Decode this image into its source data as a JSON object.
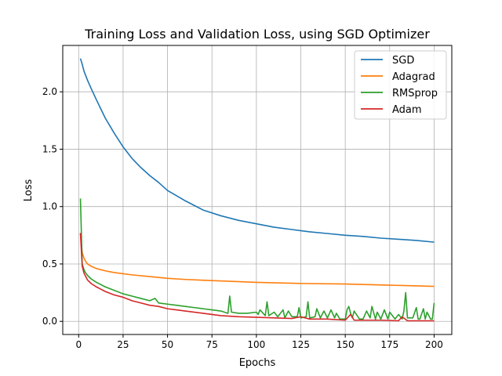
{
  "chart_data": {
    "type": "line",
    "title": "Training Loss and Validation Loss, using SGD Optimizer",
    "xlabel": "Epochs",
    "ylabel": "Loss",
    "xlim": [
      -8.95,
      209.95
    ],
    "ylim": [
      -0.1145,
      2.404
    ],
    "xticks": [
      0,
      25,
      50,
      75,
      100,
      125,
      150,
      175,
      200
    ],
    "yticks": [
      0.0,
      0.5,
      1.0,
      1.5,
      2.0
    ],
    "ytick_labels": [
      "0.0",
      "0.5",
      "1.0",
      "1.5",
      "2.0"
    ],
    "grid": true,
    "legend_position": "top-right",
    "series": [
      {
        "name": "SGD",
        "color": "#1f77b4",
        "x": [
          1,
          2,
          3,
          5,
          7,
          10,
          15,
          20,
          25,
          30,
          35,
          40,
          45,
          50,
          60,
          70,
          80,
          90,
          100,
          110,
          120,
          130,
          140,
          150,
          160,
          170,
          180,
          190,
          200
        ],
        "y": [
          2.29,
          2.24,
          2.18,
          2.1,
          2.03,
          1.93,
          1.77,
          1.64,
          1.52,
          1.42,
          1.34,
          1.27,
          1.21,
          1.14,
          1.05,
          0.97,
          0.92,
          0.88,
          0.85,
          0.82,
          0.8,
          0.78,
          0.765,
          0.75,
          0.74,
          0.725,
          0.715,
          0.705,
          0.69
        ]
      },
      {
        "name": "Adagrad",
        "color": "#ff7f0e",
        "x": [
          1,
          2,
          3,
          4,
          5,
          7,
          10,
          15,
          20,
          25,
          30,
          40,
          50,
          60,
          75,
          100,
          125,
          150,
          175,
          200
        ],
        "y": [
          0.76,
          0.6,
          0.55,
          0.52,
          0.5,
          0.48,
          0.46,
          0.44,
          0.425,
          0.415,
          0.405,
          0.39,
          0.375,
          0.365,
          0.355,
          0.34,
          0.33,
          0.325,
          0.315,
          0.305
        ]
      },
      {
        "name": "RMSprop",
        "color": "#2ca02c",
        "x": [
          1,
          2,
          3,
          4,
          5,
          7,
          10,
          15,
          20,
          25,
          30,
          35,
          40,
          43,
          45,
          50,
          55,
          60,
          65,
          70,
          75,
          80,
          84,
          85,
          86,
          90,
          95,
          100,
          101,
          102,
          105,
          106,
          107,
          110,
          112,
          115,
          116,
          118,
          120,
          123,
          124,
          125,
          128,
          129,
          130,
          133,
          134,
          136,
          138,
          140,
          142,
          144,
          145,
          147,
          150,
          151,
          152,
          153,
          154,
          155,
          158,
          160,
          162,
          164,
          165,
          167,
          168,
          170,
          172,
          174,
          175,
          178,
          180,
          182,
          183,
          184,
          185,
          188,
          190,
          191,
          192,
          194,
          195,
          196,
          198,
          199,
          200
        ],
        "y": [
          1.07,
          0.5,
          0.45,
          0.42,
          0.4,
          0.37,
          0.34,
          0.3,
          0.27,
          0.24,
          0.22,
          0.2,
          0.18,
          0.2,
          0.16,
          0.15,
          0.14,
          0.13,
          0.12,
          0.11,
          0.1,
          0.09,
          0.07,
          0.22,
          0.08,
          0.07,
          0.07,
          0.08,
          0.06,
          0.1,
          0.05,
          0.17,
          0.05,
          0.08,
          0.04,
          0.1,
          0.03,
          0.09,
          0.04,
          0.04,
          0.12,
          0.03,
          0.04,
          0.17,
          0.03,
          0.04,
          0.11,
          0.03,
          0.09,
          0.03,
          0.1,
          0.03,
          0.07,
          0.02,
          0.02,
          0.1,
          0.13,
          0.07,
          0.03,
          0.09,
          0.02,
          0.02,
          0.09,
          0.03,
          0.13,
          0.02,
          0.08,
          0.02,
          0.1,
          0.02,
          0.08,
          0.02,
          0.06,
          0.02,
          0.09,
          0.25,
          0.03,
          0.03,
          0.12,
          0.02,
          0.02,
          0.11,
          0.02,
          0.08,
          0.02,
          0.02,
          0.16
        ]
      },
      {
        "name": "Adam",
        "color": "#d62728",
        "x": [
          1,
          2,
          3,
          4,
          5,
          7,
          10,
          15,
          20,
          25,
          30,
          35,
          40,
          45,
          50,
          55,
          60,
          70,
          80,
          90,
          100,
          110,
          120,
          125,
          130,
          140,
          150,
          153,
          155,
          160,
          170,
          180,
          182,
          185,
          190,
          200
        ],
        "y": [
          0.77,
          0.48,
          0.42,
          0.39,
          0.36,
          0.33,
          0.3,
          0.26,
          0.23,
          0.21,
          0.18,
          0.16,
          0.14,
          0.13,
          0.11,
          0.1,
          0.09,
          0.07,
          0.05,
          0.04,
          0.035,
          0.03,
          0.025,
          0.04,
          0.02,
          0.02,
          0.01,
          0.06,
          0.01,
          0.01,
          0.01,
          0.005,
          0.04,
          0.005,
          0.005,
          0.005
        ]
      }
    ]
  }
}
